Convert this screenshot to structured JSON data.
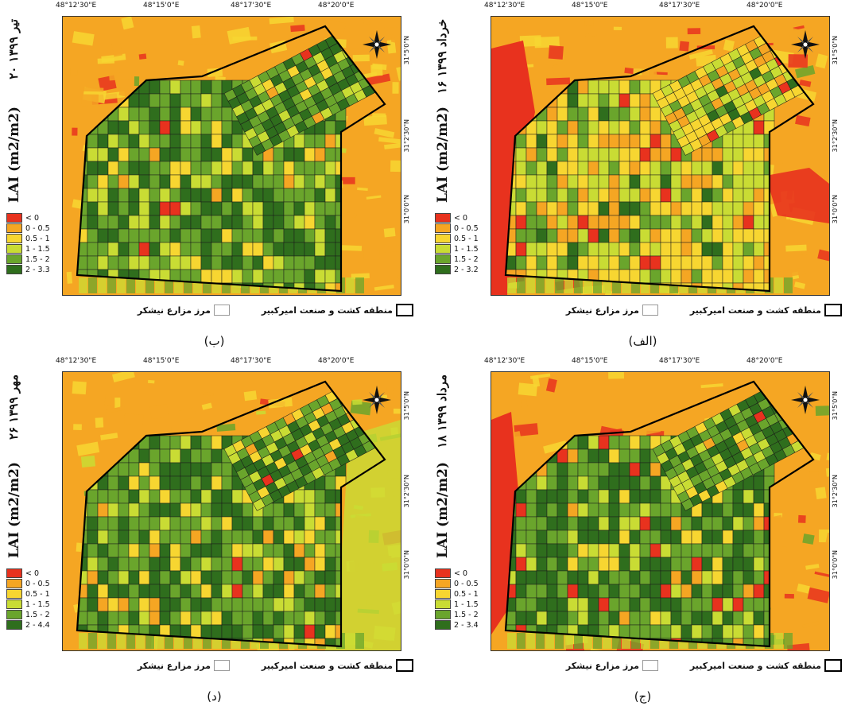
{
  "coords_x": [
    "48°12'30\"E",
    "48°15'0\"E",
    "48°17'30\"E",
    "48°20'0\"E"
  ],
  "coords_y": [
    "31°5'0\"N",
    "31°2'30\"N",
    "31°0'0\"N"
  ],
  "lai_label": "LAI (m2/m2)",
  "boundary_legend": {
    "region": "منطقه کشت و صنعت امیرکبیر",
    "fields": "مرز مزارع نیشکر"
  },
  "colors": {
    "c0": "#e8321e",
    "c1": "#f5a623",
    "c2": "#f7d631",
    "c3": "#c9dc34",
    "c4": "#6aa52c",
    "c5": "#2f6e1d"
  },
  "panels": [
    {
      "id": "alef",
      "label": "(الف)",
      "date": "۱۶ خرداد ۱۳۹۹",
      "legend": [
        "< 0",
        "0 - 0.5",
        "0.5 - 1",
        "1 - 1.5",
        "1.5 - 2",
        "2 - 3.2"
      ]
    },
    {
      "id": "be",
      "label": "(ب)",
      "date": "۲۰ تیر ۱۳۹۹",
      "legend": [
        "< 0",
        "0 - 0.5",
        "0.5 - 1",
        "1 - 1.5",
        "1.5 - 2",
        "2 - 3.3"
      ]
    },
    {
      "id": "jim",
      "label": "(ج)",
      "date": "۱۸ مرداد ۱۳۹۹",
      "legend": [
        "< 0",
        "0 - 0.5",
        "0.5 - 1",
        "1 - 1.5",
        "1.5 - 2",
        "2 - 3.4"
      ]
    },
    {
      "id": "dal",
      "label": "(د)",
      "date": "۲۶ مهر ۱۳۹۹",
      "legend": [
        "< 0",
        "0 - 0.5",
        "0.5 - 1",
        "1 - 1.5",
        "1.5 - 2",
        "2 - 4.4"
      ]
    }
  ]
}
